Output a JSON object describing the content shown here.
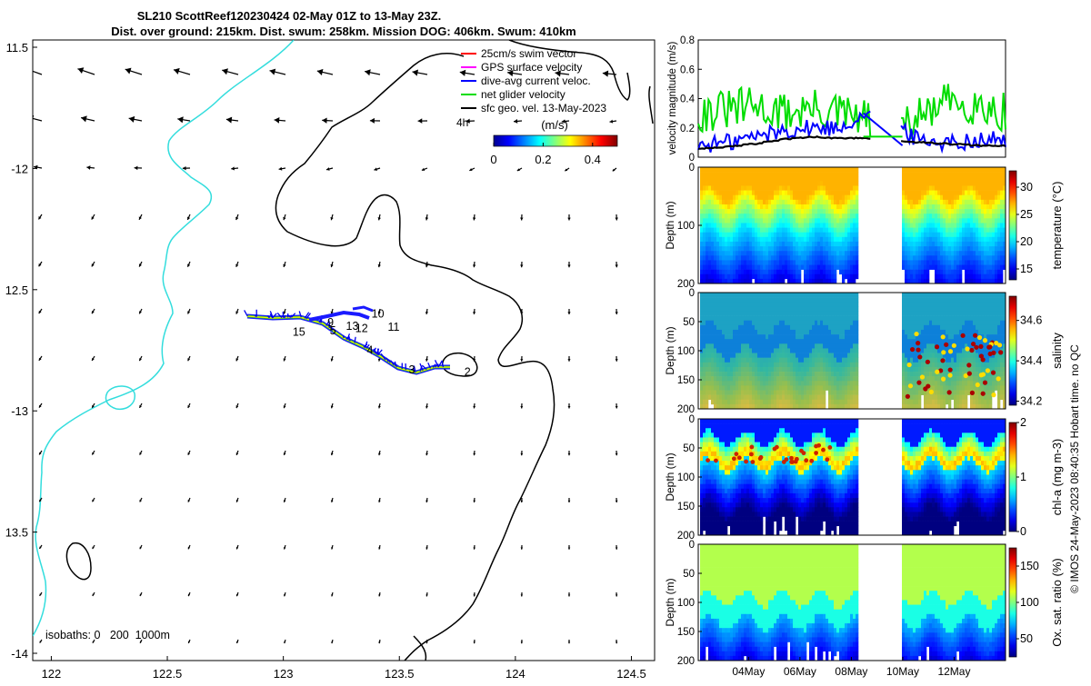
{
  "header": {
    "line1": "SL210 ScottReef120230424 02-May 01Z to 13-May 23Z.",
    "line2": "Dist. over ground: 215km. Dist. swum: 258km. Mission DOG: 406km. Swum: 410km"
  },
  "map": {
    "x_ticks": [
      {
        "value": 122,
        "label": "122"
      },
      {
        "value": 122.5,
        "label": "122.5"
      },
      {
        "value": 123,
        "label": "123"
      },
      {
        "value": 123.5,
        "label": "123.5"
      },
      {
        "value": 124,
        "label": "124"
      },
      {
        "value": 124.5,
        "label": "124.5"
      }
    ],
    "y_ticks": [
      {
        "value": -11.5,
        "label": "11.5"
      },
      {
        "value": -12,
        "label": "-12"
      },
      {
        "value": -12.5,
        "label": "12.5"
      },
      {
        "value": -13,
        "label": "-13"
      },
      {
        "value": -13.5,
        "label": "13.5"
      },
      {
        "value": -14,
        "label": "-14"
      }
    ],
    "xlim": [
      121.92,
      124.6
    ],
    "ylim": [
      -14.03,
      -11.47
    ],
    "legend": [
      {
        "label": "25cm/s swim vector",
        "color": "#ff0000"
      },
      {
        "label": "GPS surface velocity",
        "color": "#ff00ff"
      },
      {
        "label": "dive-avg current veloc.",
        "color": "#0000ff"
      },
      {
        "label": "net glider velocity",
        "color": "#00dd00"
      },
      {
        "label": "sfc geo. vel. 13-May-2023",
        "color": "#000000"
      }
    ],
    "legend_extra": "4h",
    "colorbar": {
      "label": "(m/s)",
      "ticks": [
        "0",
        "0.2",
        "0.4"
      ],
      "range": [
        0,
        0.5
      ]
    },
    "isobaths_label": "isobaths: 0   200  1000m",
    "track_labels": [
      {
        "text": "2",
        "lon": 123.78,
        "lat": -12.84
      },
      {
        "text": "3",
        "lon": 123.54,
        "lat": -12.83
      },
      {
        "text": "4",
        "lon": 123.36,
        "lat": -12.75
      },
      {
        "text": "5",
        "lon": 123.2,
        "lat": -12.67
      },
      {
        "text": "9",
        "lon": 123.19,
        "lat": -12.635
      },
      {
        "text": "10",
        "lon": 123.38,
        "lat": -12.6
      },
      {
        "text": "11",
        "lon": 123.45,
        "lat": -12.655
      },
      {
        "text": "12",
        "lon": 123.31,
        "lat": -12.66
      },
      {
        "text": "13",
        "lon": 123.27,
        "lat": -12.65
      },
      {
        "text": "15",
        "lon": 123.04,
        "lat": -12.675
      }
    ]
  },
  "velocity_panel": {
    "ylabel": "velocity magnitude (m/s)",
    "y_ticks": [
      "0",
      "0.2",
      "0.4",
      "0.6",
      "0.8"
    ],
    "ylim": [
      0,
      0.8
    ]
  },
  "sections": [
    {
      "label": "temperature (°C)",
      "cbar_ticks": [
        "15",
        "20",
        "25",
        "30"
      ],
      "cbar_range": [
        13,
        33
      ],
      "ylabel": "Depth (m)",
      "y_ticks": [
        "0",
        "100",
        "200"
      ],
      "y_tick_values": [
        0,
        100,
        200
      ]
    },
    {
      "label": "salinity",
      "cbar_ticks": [
        "34.2",
        "34.4",
        "34.6"
      ],
      "cbar_range": [
        34.18,
        34.72
      ],
      "ylabel": "Depth (m)",
      "y_ticks": [
        "0",
        "50",
        "100",
        "150",
        "200"
      ],
      "y_tick_values": [
        0,
        50,
        100,
        150,
        200
      ]
    },
    {
      "label": "chl-a (mg m-3)",
      "cbar_ticks": [
        "0",
        "1",
        "2"
      ],
      "cbar_range": [
        0,
        2
      ],
      "ylabel": "Depth (m)",
      "y_ticks": [
        "0",
        "50",
        "100",
        "150",
        "200"
      ],
      "y_tick_values": [
        0,
        50,
        100,
        150,
        200
      ]
    },
    {
      "label": "Ox. sat. ratio (%)",
      "cbar_ticks": [
        "50",
        "100",
        "150"
      ],
      "cbar_range": [
        25,
        175
      ],
      "ylabel": "Depth (m)",
      "y_ticks": [
        "0",
        "50",
        "100",
        "150",
        "200"
      ],
      "y_tick_values": [
        0,
        50,
        100,
        150,
        200
      ]
    }
  ],
  "time_axis": {
    "range": [
      "2023-05-02T01:00",
      "2023-05-14T00:00"
    ],
    "ticks": [
      {
        "date": "2023-05-04",
        "label": "04May"
      },
      {
        "date": "2023-05-06",
        "label": "06May"
      },
      {
        "date": "2023-05-08",
        "label": "08May"
      },
      {
        "date": "2023-05-10",
        "label": "10May"
      },
      {
        "date": "2023-05-12",
        "label": "12May"
      }
    ]
  },
  "footer_note": "© IMOS 24-May-2023 08:40:35 Hobart time. no QC",
  "chart_data": {
    "type": "line",
    "title": "SL210 ScottReef120230424 02-May 01Z to 13-May 23Z.",
    "xlabel": "",
    "ylabel": "velocity magnitude (m/s)",
    "ylim": [
      0,
      0.8
    ],
    "x": [
      "2023-05-02",
      "2023-05-03",
      "2023-05-04",
      "2023-05-05",
      "2023-05-06",
      "2023-05-07",
      "2023-05-08",
      "2023-05-10",
      "2023-05-11",
      "2023-05-12",
      "2023-05-13",
      "2023-05-14"
    ],
    "series": [
      {
        "name": "net glider velocity",
        "color": "#00dd00",
        "values": [
          0.3,
          0.32,
          0.35,
          0.3,
          0.33,
          0.3,
          0.26,
          0.15,
          0.28,
          0.38,
          0.36,
          0.3
        ]
      },
      {
        "name": "dive-avg current veloc.",
        "color": "#0000ff",
        "values": [
          0.08,
          0.1,
          0.14,
          0.18,
          0.2,
          0.2,
          0.3,
          0.2,
          0.12,
          0.1,
          0.12,
          0.12
        ]
      },
      {
        "name": "sfc geo. vel. 13-May-2023",
        "color": "#000000",
        "values": [
          0.06,
          0.07,
          0.09,
          0.12,
          0.14,
          0.13,
          0.13,
          0.11,
          0.1,
          0.09,
          0.08,
          0.08
        ]
      }
    ],
    "gap": [
      "2023-05-08T18:00",
      "2023-05-09T22:00"
    ]
  }
}
